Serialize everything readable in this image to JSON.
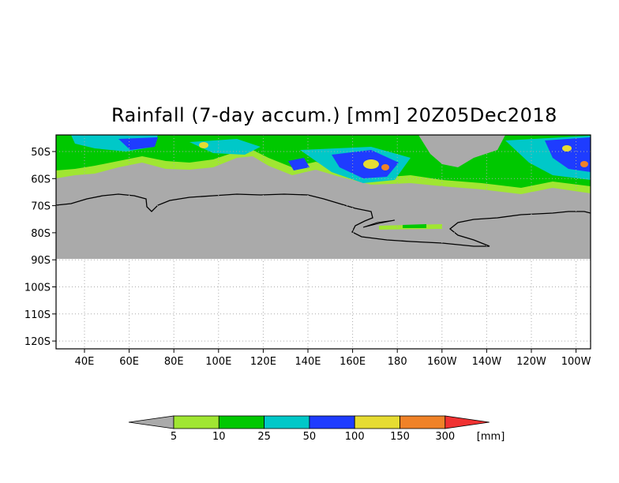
{
  "title": "Rainfall (7-day accum.) [mm] 20Z05Dec2018",
  "lat_labels": [
    "50S",
    "60S",
    "70S",
    "80S",
    "90S",
    "100S",
    "110S",
    "120S"
  ],
  "lon_labels": [
    "40E",
    "60E",
    "80E",
    "100E",
    "120E",
    "140E",
    "160E",
    "180",
    "160W",
    "140W",
    "120W",
    "100W"
  ],
  "colorbar": {
    "ticks": [
      "5",
      "10",
      "25",
      "50",
      "100",
      "150",
      "300"
    ],
    "unit": "[mm]",
    "colors": {
      "below": "#aaaaaa",
      "bins": [
        "#a0e632",
        "#00c800",
        "#00c8c8",
        "#1e3cff",
        "#e6dc32",
        "#f08228"
      ],
      "above": "#f03232"
    }
  },
  "map_colors": {
    "no_rain": "#aaaaaa",
    "grid": "#aaaaaa",
    "coast": "#000000",
    "light": "#a0e632",
    "green": "#00c800",
    "cyan": "#00c8c8",
    "blue": "#1e3cff",
    "yellow": "#e6dc32",
    "orange": "#f08228"
  }
}
